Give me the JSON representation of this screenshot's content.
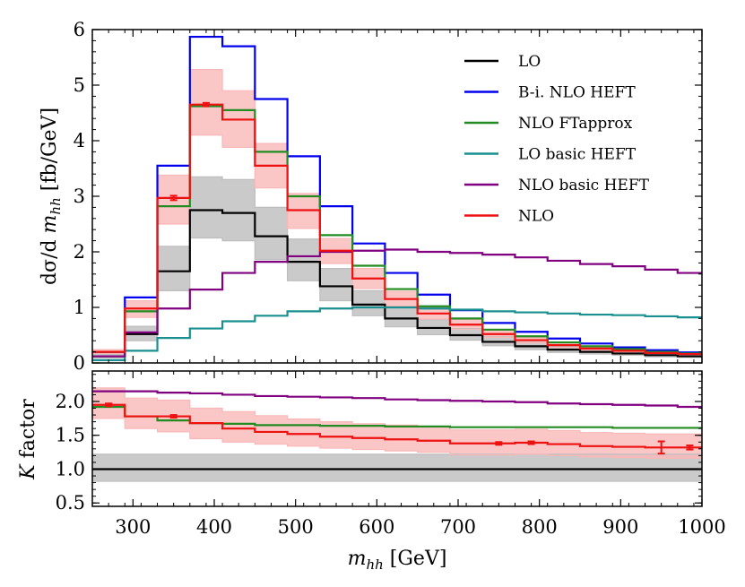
{
  "chart_data": {
    "type": "line",
    "style": "step-histogram",
    "bin_edges": [
      250,
      290,
      330,
      370,
      410,
      450,
      490,
      530,
      570,
      610,
      650,
      690,
      730,
      770,
      810,
      850,
      890,
      930,
      970,
      1000
    ],
    "x_axis": {
      "label_var": "m",
      "label_sub": "hh",
      "label_unit": " [GeV]",
      "range": [
        250,
        1000
      ],
      "ticks": [
        300,
        400,
        500,
        600,
        700,
        800,
        900,
        1000
      ],
      "tick_labels": [
        "300",
        "400",
        "500",
        "600",
        "700",
        "800",
        "900",
        "1000"
      ]
    },
    "top_panel": {
      "ylabel_prefix": "dσ/d ",
      "ylabel_var": "m",
      "ylabel_sub": "hh",
      "ylabel_unit": " [fb/GeV]",
      "ylim": [
        0,
        6
      ],
      "ticks": [
        0,
        1,
        2,
        3,
        4,
        5,
        6
      ],
      "tick_labels": [
        "0",
        "1",
        "2",
        "3",
        "4",
        "5",
        "6"
      ],
      "legend_position": "top-right",
      "series": [
        {
          "name": "LO",
          "color": "#000000",
          "values": [
            0.12,
            0.52,
            1.65,
            2.75,
            2.7,
            2.28,
            1.82,
            1.38,
            1.05,
            0.8,
            0.63,
            0.5,
            0.38,
            0.3,
            0.24,
            0.2,
            0.17,
            0.14,
            0.12
          ],
          "band_low": [
            0.09,
            0.4,
            1.3,
            2.25,
            2.2,
            1.86,
            1.48,
            1.12,
            0.85,
            0.65,
            0.51,
            0.41,
            0.31,
            0.24,
            0.19,
            0.16,
            0.14,
            0.11,
            0.1
          ],
          "band_high": [
            0.16,
            0.66,
            2.1,
            3.35,
            3.3,
            2.8,
            2.23,
            1.7,
            1.3,
            1.0,
            0.78,
            0.62,
            0.47,
            0.37,
            0.3,
            0.25,
            0.21,
            0.17,
            0.15
          ],
          "band_color": "#bdbdbd"
        },
        {
          "name": "B-i. NLO HEFT",
          "color": "#0000ee",
          "values": [
            0.2,
            1.18,
            3.55,
            5.87,
            5.7,
            4.75,
            3.72,
            2.82,
            2.15,
            1.62,
            1.23,
            0.95,
            0.72,
            0.56,
            0.44,
            0.35,
            0.28,
            0.23,
            0.19
          ]
        },
        {
          "name": "NLO FTapprox",
          "color": "#228b22",
          "values": [
            0.2,
            0.93,
            2.82,
            4.62,
            4.55,
            3.8,
            3.0,
            2.3,
            1.75,
            1.33,
            1.02,
            0.8,
            0.6,
            0.48,
            0.37,
            0.3,
            0.25,
            0.2,
            0.17
          ]
        },
        {
          "name": "LO basic HEFT",
          "color": "#1a8f8f",
          "values": [
            0.05,
            0.22,
            0.45,
            0.62,
            0.75,
            0.85,
            0.93,
            0.98,
            1.0,
            1.0,
            0.98,
            0.96,
            0.93,
            0.91,
            0.89,
            0.87,
            0.86,
            0.84,
            0.82
          ]
        },
        {
          "name": "NLO basic HEFT",
          "color": "#800080",
          "values": [
            0.12,
            0.55,
            0.98,
            1.32,
            1.62,
            1.82,
            1.92,
            2.0,
            2.02,
            2.04,
            2.0,
            1.98,
            1.95,
            1.9,
            1.84,
            1.78,
            1.74,
            1.68,
            1.62
          ]
        },
        {
          "name": "NLO",
          "color": "#ee1111",
          "values": [
            0.2,
            0.98,
            2.97,
            4.65,
            4.38,
            3.55,
            2.75,
            2.02,
            1.52,
            1.15,
            0.89,
            0.69,
            0.52,
            0.41,
            0.32,
            0.26,
            0.22,
            0.18,
            0.16
          ],
          "band_low": [
            0.17,
            0.82,
            2.5,
            4.1,
            3.88,
            3.15,
            2.42,
            1.79,
            1.34,
            1.02,
            0.79,
            0.61,
            0.46,
            0.36,
            0.28,
            0.23,
            0.19,
            0.16,
            0.14
          ],
          "band_high": [
            0.24,
            1.12,
            3.38,
            5.28,
            4.9,
            3.95,
            3.05,
            2.24,
            1.7,
            1.29,
            1.0,
            0.78,
            0.59,
            0.46,
            0.36,
            0.29,
            0.25,
            0.2,
            0.18
          ],
          "band_color": "#f9b8b8",
          "error_bars": [
            {
              "bin": 2,
              "err": 0.04
            },
            {
              "bin": 3,
              "err": 0.03
            }
          ]
        }
      ]
    },
    "bottom_panel": {
      "ylabel_var": "K",
      "ylabel_text": " factor",
      "ylim": [
        0.45,
        2.45
      ],
      "ticks": [
        0.5,
        1.0,
        1.5,
        2.0
      ],
      "tick_labels": [
        "0.5",
        "1.0",
        "1.5",
        "2.0"
      ],
      "series": [
        {
          "name": "LO",
          "color": "#000000",
          "values": [
            1,
            1,
            1,
            1,
            1,
            1,
            1,
            1,
            1,
            1,
            1,
            1,
            1,
            1,
            1,
            1,
            1,
            1,
            1
          ],
          "band_low": [
            0.82,
            0.82,
            0.82,
            0.82,
            0.82,
            0.82,
            0.82,
            0.82,
            0.82,
            0.82,
            0.82,
            0.82,
            0.82,
            0.82,
            0.82,
            0.82,
            0.82,
            0.82,
            0.82
          ],
          "band_high": [
            1.22,
            1.22,
            1.22,
            1.22,
            1.22,
            1.22,
            1.22,
            1.22,
            1.22,
            1.22,
            1.22,
            1.22,
            1.22,
            1.22,
            1.22,
            1.22,
            1.22,
            1.22,
            1.22
          ],
          "band_color": "#bdbdbd"
        },
        {
          "name": "NLO basic HEFT",
          "color": "#800080",
          "values": [
            2.15,
            2.15,
            2.13,
            2.12,
            2.1,
            2.08,
            2.07,
            2.06,
            2.05,
            2.03,
            2.02,
            2.01,
            2.0,
            1.99,
            1.97,
            1.96,
            1.95,
            1.94,
            1.92
          ]
        },
        {
          "name": "NLO FTapprox",
          "color": "#228b22",
          "values": [
            1.92,
            1.78,
            1.72,
            1.68,
            1.67,
            1.65,
            1.65,
            1.64,
            1.64,
            1.63,
            1.63,
            1.62,
            1.62,
            1.62,
            1.62,
            1.62,
            1.61,
            1.61,
            1.61
          ]
        },
        {
          "name": "NLO",
          "color": "#ee1111",
          "values": [
            1.95,
            1.78,
            1.78,
            1.68,
            1.6,
            1.55,
            1.52,
            1.48,
            1.46,
            1.44,
            1.42,
            1.38,
            1.38,
            1.39,
            1.37,
            1.34,
            1.33,
            1.32,
            1.32
          ],
          "band_low": [
            1.75,
            1.6,
            1.55,
            1.45,
            1.4,
            1.37,
            1.34,
            1.31,
            1.29,
            1.27,
            1.25,
            1.21,
            1.21,
            1.22,
            1.2,
            1.18,
            1.17,
            1.16,
            1.16
          ],
          "band_high": [
            2.2,
            2.05,
            2.02,
            1.9,
            1.85,
            1.79,
            1.74,
            1.7,
            1.67,
            1.65,
            1.63,
            1.58,
            1.58,
            1.59,
            1.57,
            1.54,
            1.53,
            1.52,
            1.52
          ],
          "band_color": "#f9b8b8",
          "error_bars": [
            {
              "bin": 0,
              "err": 0.02
            },
            {
              "bin": 2,
              "err": 0.02
            },
            {
              "bin": 12,
              "err": 0.02
            },
            {
              "bin": 13,
              "err": 0.02
            },
            {
              "bin": 17,
              "err": 0.09
            },
            {
              "bin": 18,
              "err": 0.03
            }
          ]
        }
      ]
    }
  }
}
